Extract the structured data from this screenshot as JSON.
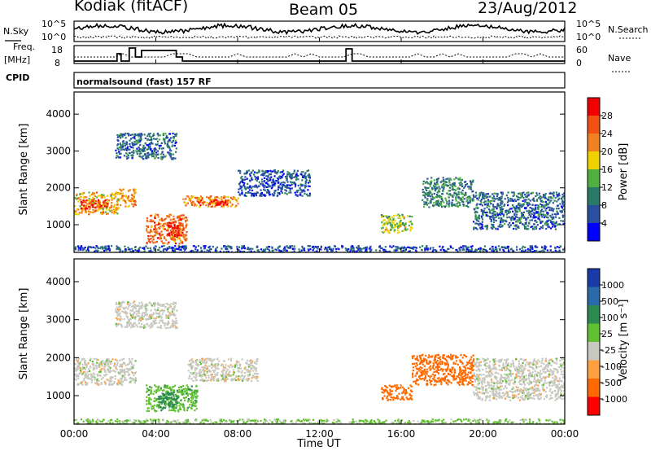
{
  "header": {
    "radar": "Kodiak (fitACF)",
    "beam": "Beam 05",
    "date": "23/Aug/2012"
  },
  "strip": {
    "nsky_label": "N.Sky",
    "nsky_ticks": [
      "10^5",
      "10^0"
    ],
    "nsearch_label": "N.Search",
    "nsearch_ticks": [
      "10^5",
      "10^0"
    ],
    "freq_label": "Freq.",
    "freq_unit": "[MHz]",
    "freq_ticks": [
      "18",
      "8"
    ],
    "nave_label": "Nave",
    "nave_ticks": [
      "60",
      "0"
    ],
    "cpid_label": "CPID",
    "cpid_text": "normalsound (fast) 157 RF"
  },
  "x_axis": {
    "label": "Time UT",
    "ticks": [
      "00:00",
      "04:00",
      "08:00",
      "12:00",
      "16:00",
      "20:00",
      "00:00"
    ]
  },
  "colors": {
    "power": [
      "#0000ff",
      "#2a4ea0",
      "#2a7a6a",
      "#4fb040",
      "#f0d000",
      "#f08020",
      "#f05010",
      "#f00000"
    ],
    "velocity": [
      "#ff0000",
      "#ff6a00",
      "#ffa040",
      "#c8c8c0",
      "#60c030",
      "#2a8a50",
      "#2a6aaa",
      "#1a3aaa"
    ]
  },
  "chart_data": [
    {
      "type": "heatmap",
      "name": "power",
      "ylabel": "Slant Range [km]",
      "yticks": [
        "1000",
        "2000",
        "3000",
        "4000"
      ],
      "ylim": [
        250,
        4600
      ],
      "xlim": [
        0,
        24
      ],
      "colorbar": {
        "label": "Power [dB]",
        "ticks": [
          "4",
          "8",
          "12",
          "16",
          "20",
          "24",
          "28"
        ],
        "range": [
          0,
          32
        ]
      },
      "regions": [
        {
          "t": [
            0.0,
            2.2
          ],
          "r": [
            1300,
            1900
          ],
          "v": 20
        },
        {
          "t": [
            0.3,
            1.6
          ],
          "r": [
            1450,
            1700
          ],
          "v": 28
        },
        {
          "t": [
            2.2,
            3.0
          ],
          "r": [
            1500,
            2000
          ],
          "v": 22
        },
        {
          "t": [
            3.5,
            5.5
          ],
          "r": [
            500,
            1300
          ],
          "v": 24
        },
        {
          "t": [
            4.5,
            5.2
          ],
          "r": [
            700,
            1100
          ],
          "v": 30
        },
        {
          "t": [
            5.3,
            8.0
          ],
          "r": [
            1500,
            1800
          ],
          "v": 22
        },
        {
          "t": [
            6.0,
            7.5
          ],
          "r": [
            1550,
            1700
          ],
          "v": 28
        },
        {
          "t": [
            2.0,
            5.0
          ],
          "r": [
            2800,
            3500
          ],
          "v": 8
        },
        {
          "t": [
            8.0,
            11.5
          ],
          "r": [
            1800,
            2500
          ],
          "v": 6
        },
        {
          "t": [
            15.0,
            16.5
          ],
          "r": [
            800,
            1300
          ],
          "v": 16
        },
        {
          "t": [
            17.0,
            19.5
          ],
          "r": [
            1500,
            2300
          ],
          "v": 10
        },
        {
          "t": [
            19.5,
            24.0
          ],
          "r": [
            900,
            1900
          ],
          "v": 8
        },
        {
          "t": [
            0.0,
            24.0
          ],
          "r": [
            250,
            450
          ],
          "v": 6
        }
      ]
    },
    {
      "type": "heatmap",
      "name": "velocity",
      "ylabel": "Slant Range [km]",
      "yticks": [
        "1000",
        "2000",
        "3000",
        "4000"
      ],
      "ylim": [
        250,
        4600
      ],
      "xlim": [
        0,
        24
      ],
      "colorbar": {
        "label": "Velocity [m s⁻¹]",
        "ticks": [
          "1000",
          "500",
          "100",
          "25",
          "-25",
          "-100",
          "-500",
          "-1000"
        ]
      },
      "regions": [
        {
          "t": [
            0.0,
            3.0
          ],
          "r": [
            1300,
            2000
          ],
          "v": 0
        },
        {
          "t": [
            3.5,
            6.0
          ],
          "r": [
            600,
            1300
          ],
          "v": 80
        },
        {
          "t": [
            4.0,
            5.0
          ],
          "r": [
            700,
            1100
          ],
          "v": 150
        },
        {
          "t": [
            5.5,
            9.0
          ],
          "r": [
            1400,
            2000
          ],
          "v": 0
        },
        {
          "t": [
            2.0,
            5.0
          ],
          "r": [
            2800,
            3500
          ],
          "v": 0
        },
        {
          "t": [
            15.0,
            16.5
          ],
          "r": [
            900,
            1300
          ],
          "v": -200
        },
        {
          "t": [
            16.5,
            19.5
          ],
          "r": [
            1300,
            2100
          ],
          "v": -150
        },
        {
          "t": [
            19.5,
            24.0
          ],
          "r": [
            900,
            2000
          ],
          "v": 0
        },
        {
          "t": [
            0.0,
            24.0
          ],
          "r": [
            250,
            400
          ],
          "v": 40
        }
      ]
    }
  ]
}
